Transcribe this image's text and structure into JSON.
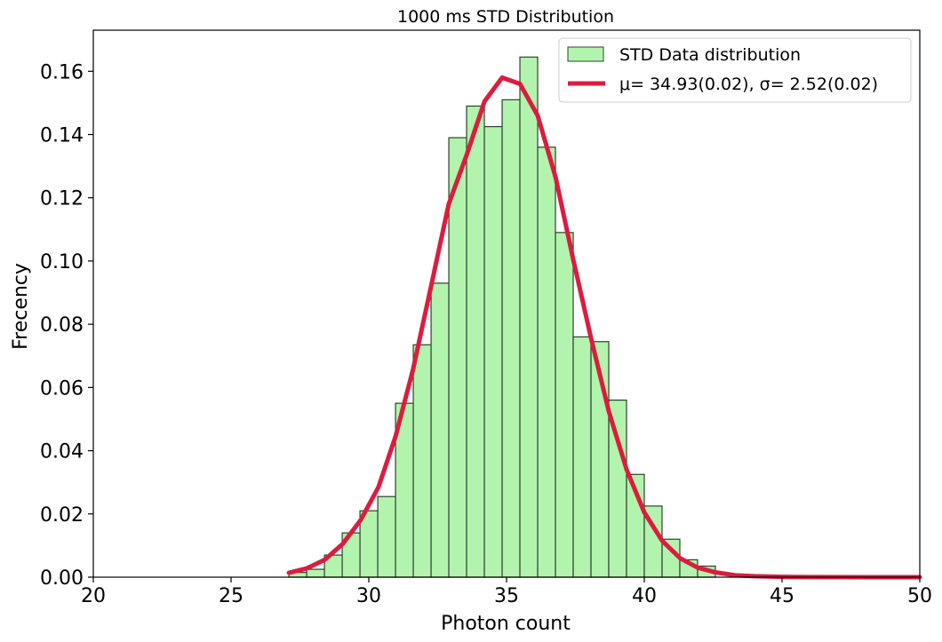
{
  "chart_data": {
    "type": "bar",
    "title": "1000 ms STD Distribution",
    "xlabel": "Photon count",
    "ylabel": "Frecency",
    "xlim": [
      20,
      50
    ],
    "ylim": [
      0,
      0.173
    ],
    "grid": false,
    "legend_position": "top-right",
    "x_ticks": [
      {
        "value": 20,
        "label": "20"
      },
      {
        "value": 25,
        "label": "25"
      },
      {
        "value": 30,
        "label": "30"
      },
      {
        "value": 35,
        "label": "35"
      },
      {
        "value": 40,
        "label": "40"
      },
      {
        "value": 45,
        "label": "45"
      },
      {
        "value": 50,
        "label": "50"
      }
    ],
    "y_ticks": [
      {
        "value": 0.0,
        "label": "0.00"
      },
      {
        "value": 0.02,
        "label": "0.02"
      },
      {
        "value": 0.04,
        "label": "0.04"
      },
      {
        "value": 0.06,
        "label": "0.06"
      },
      {
        "value": 0.08,
        "label": "0.08"
      },
      {
        "value": 0.1,
        "label": "0.10"
      },
      {
        "value": 0.12,
        "label": "0.12"
      },
      {
        "value": 0.14,
        "label": "0.14"
      },
      {
        "value": 0.16,
        "label": "0.16"
      }
    ],
    "histogram": {
      "name": "STD Data distribution",
      "color": "#b2f4ad",
      "edge_color": "#2f3f2f",
      "bin_width": 0.645,
      "bin_starts": [
        27.1,
        27.745,
        28.39,
        29.035,
        29.68,
        30.325,
        30.97,
        31.615,
        32.26,
        32.905,
        33.55,
        34.195,
        34.84,
        35.485,
        36.13,
        36.775,
        37.42,
        38.065,
        38.71,
        39.355,
        40.0,
        40.645,
        41.29,
        41.935
      ],
      "values": [
        0.0015,
        0.0025,
        0.007,
        0.014,
        0.021,
        0.0255,
        0.055,
        0.0735,
        0.093,
        0.139,
        0.149,
        0.1425,
        0.151,
        0.1645,
        0.136,
        0.109,
        0.076,
        0.0745,
        0.056,
        0.0325,
        0.0225,
        0.012,
        0.0055,
        0.0035
      ]
    },
    "fit": {
      "name": "μ= 34.93(0.02), σ= 2.52(0.02)",
      "color": "#dc1c3f",
      "x": [
        27.1,
        27.75,
        28.4,
        29.05,
        29.7,
        30.35,
        30.97,
        31.6,
        32.26,
        32.9,
        33.55,
        34.2,
        34.84,
        35.49,
        36.13,
        36.78,
        37.42,
        38.07,
        38.71,
        39.36,
        40.0,
        40.65,
        41.3,
        41.94,
        42.6,
        43.3,
        44.0,
        45.0,
        46.0,
        48.0,
        50.0
      ],
      "y": [
        0.0014,
        0.0028,
        0.0055,
        0.0105,
        0.018,
        0.0285,
        0.0445,
        0.0655,
        0.092,
        0.118,
        0.1335,
        0.1505,
        0.158,
        0.156,
        0.146,
        0.1265,
        0.1005,
        0.0755,
        0.0525,
        0.034,
        0.0205,
        0.0115,
        0.006,
        0.003,
        0.0015,
        0.0006,
        0.0003,
        0.0001,
        5e-05,
        0.0,
        0.0
      ]
    }
  }
}
